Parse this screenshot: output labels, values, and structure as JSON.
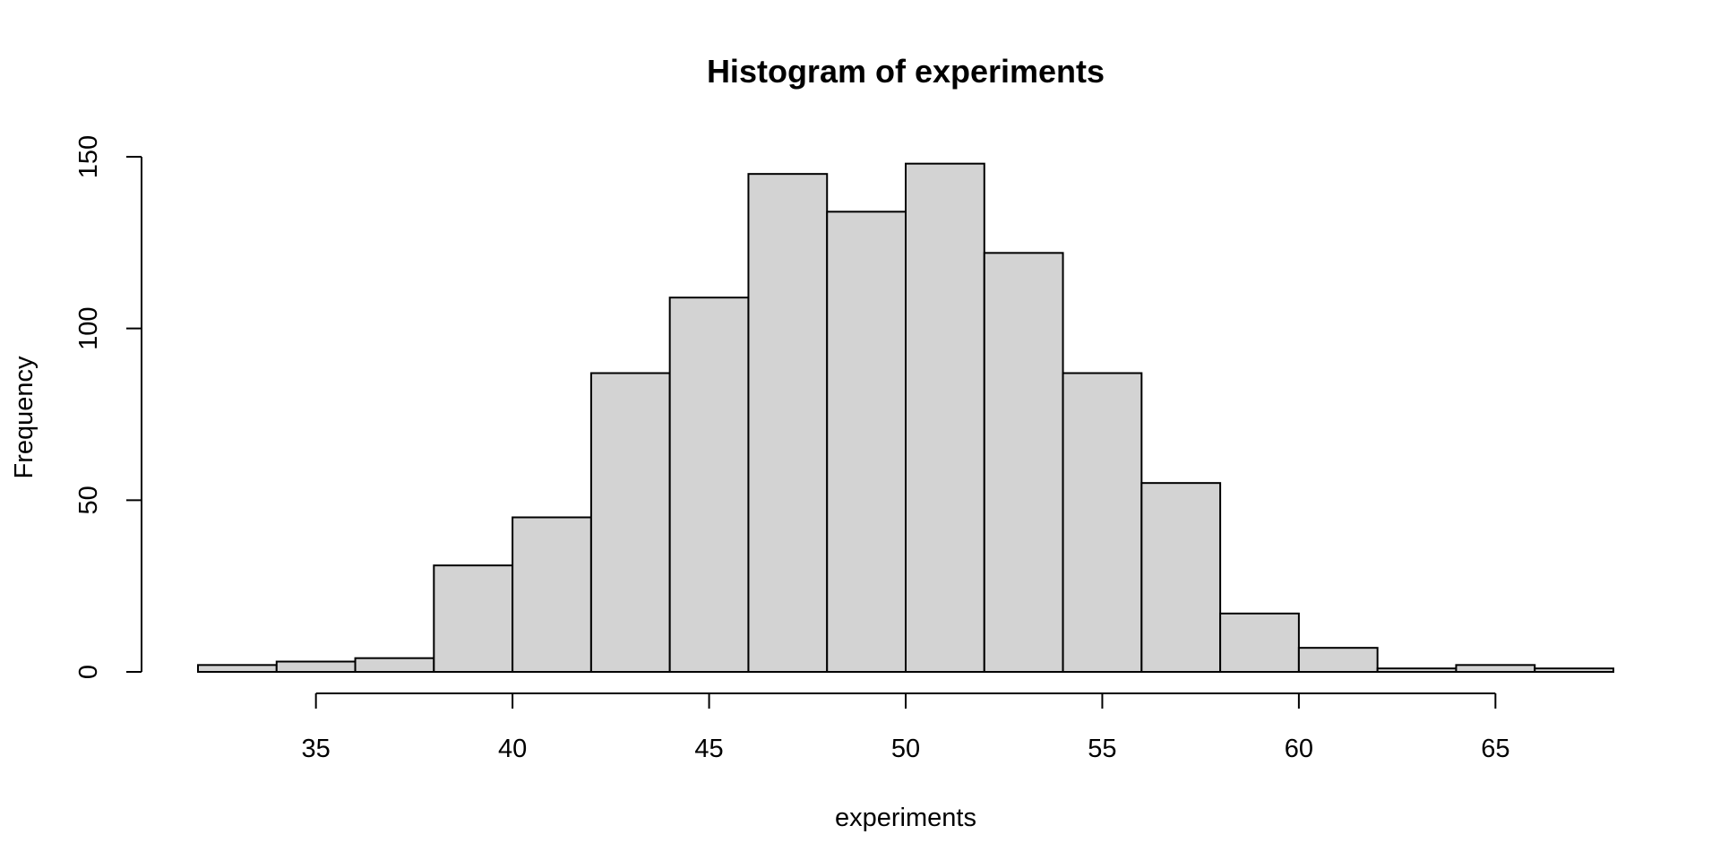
{
  "chart_data": {
    "type": "bar",
    "title": "Histogram of experiments",
    "xlabel": "experiments",
    "ylabel": "Frequency",
    "bins": [
      {
        "start": 32,
        "end": 34,
        "count": 2
      },
      {
        "start": 34,
        "end": 36,
        "count": 3
      },
      {
        "start": 36,
        "end": 38,
        "count": 4
      },
      {
        "start": 38,
        "end": 40,
        "count": 31
      },
      {
        "start": 40,
        "end": 42,
        "count": 45
      },
      {
        "start": 42,
        "end": 44,
        "count": 87
      },
      {
        "start": 44,
        "end": 46,
        "count": 109
      },
      {
        "start": 46,
        "end": 48,
        "count": 145
      },
      {
        "start": 48,
        "end": 50,
        "count": 134
      },
      {
        "start": 50,
        "end": 52,
        "count": 148
      },
      {
        "start": 52,
        "end": 54,
        "count": 122
      },
      {
        "start": 54,
        "end": 56,
        "count": 87
      },
      {
        "start": 56,
        "end": 58,
        "count": 55
      },
      {
        "start": 58,
        "end": 60,
        "count": 17
      },
      {
        "start": 60,
        "end": 62,
        "count": 7
      },
      {
        "start": 62,
        "end": 64,
        "count": 1
      },
      {
        "start": 64,
        "end": 66,
        "count": 2
      },
      {
        "start": 66,
        "end": 68,
        "count": 1
      }
    ],
    "xlim": [
      32,
      68
    ],
    "ylim": [
      0,
      150
    ],
    "x_ticks": [
      "35",
      "40",
      "45",
      "50",
      "55",
      "60",
      "65"
    ],
    "y_ticks": [
      "0",
      "50",
      "100",
      "150"
    ],
    "bar_fill": "#d3d3d3",
    "bar_stroke": "#000000",
    "grid": false,
    "legend": "none"
  }
}
